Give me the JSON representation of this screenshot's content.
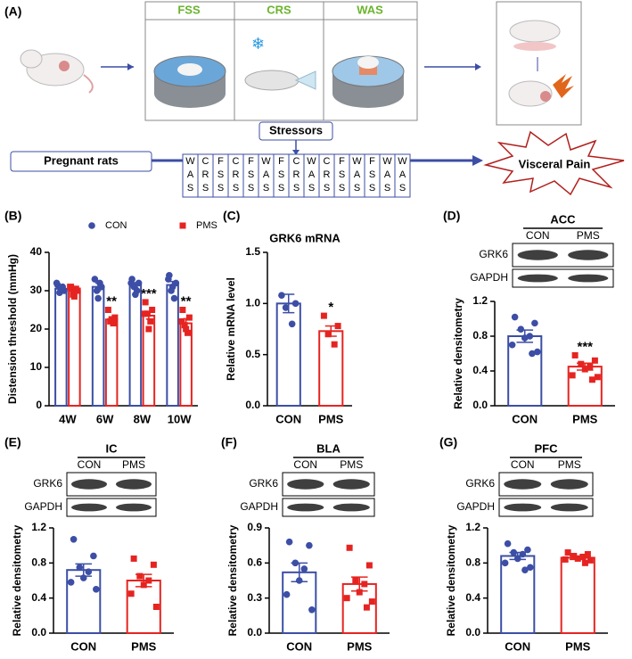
{
  "diagram": {
    "panel": "(A)",
    "stress_types": [
      "FSS",
      "CRS",
      "WAS"
    ],
    "stressors": "Stressors",
    "start": "Pregnant rats",
    "outcome": "Visceral Pain",
    "sequence": [
      [
        "W",
        "A",
        "S"
      ],
      [
        "C",
        "R",
        "S"
      ],
      [
        "F",
        "S",
        "S"
      ],
      [
        "C",
        "R",
        "S"
      ],
      [
        "F",
        "S",
        "S"
      ],
      [
        "W",
        "A",
        "S"
      ],
      [
        "F",
        "S",
        "S"
      ],
      [
        "C",
        "R",
        "S"
      ],
      [
        "W",
        "A",
        "S"
      ],
      [
        "C",
        "R",
        "S"
      ],
      [
        "F",
        "S",
        "S"
      ],
      [
        "W",
        "A",
        "S"
      ],
      [
        "F",
        "S",
        "S"
      ],
      [
        "W",
        "A",
        "S"
      ],
      [
        "W",
        "A",
        "S"
      ]
    ]
  },
  "chart_data": [
    {
      "type": "grouped_bar",
      "panel": "(B)",
      "ylabel": "Distension threshold (mmHg)",
      "categories": [
        "4W",
        "6W",
        "8W",
        "10W"
      ],
      "ylim": [
        0,
        40
      ],
      "yticks": [
        0,
        10,
        20,
        30,
        40
      ],
      "grid": false,
      "legend": "top",
      "series": [
        {
          "name": "CON",
          "color": "#3c4ea5",
          "marker": "circle",
          "values": [
            30.5,
            31,
            31.5,
            31.5
          ],
          "errors": [
            0.5,
            1.0,
            0.6,
            0.9
          ],
          "points": [
            [
              31.5,
              30,
              29.5,
              31,
              30.5,
              32
            ],
            [
              33,
              31,
              30,
              32,
              28
            ],
            [
              33,
              32,
              31,
              30,
              29,
              32
            ],
            [
              34,
              32,
              30,
              28,
              31,
              33
            ]
          ],
          "significance": [
            null,
            null,
            null,
            null
          ]
        },
        {
          "name": "PMS",
          "color": "#e52421",
          "marker": "square",
          "values": [
            30,
            22.5,
            23.5,
            21.5
          ],
          "errors": [
            0.5,
            0.7,
            0.9,
            1.2
          ],
          "points": [
            [
              31,
              30,
              29,
              30.5,
              28.5,
              31
            ],
            [
              25,
              23,
              22,
              21.5,
              22.5
            ],
            [
              27,
              25,
              24,
              22,
              20,
              24
            ],
            [
              25,
              23,
              21,
              19,
              20,
              22
            ]
          ],
          "significance": [
            null,
            "**",
            "***",
            "**"
          ]
        }
      ]
    },
    {
      "type": "bar",
      "panel": "(C)",
      "title": "GRK6 mRNA",
      "ylabel": "Relative mRNA level",
      "categories": [
        "CON",
        "PMS"
      ],
      "colors": [
        "#3c4ea5",
        "#e52421"
      ],
      "markers": [
        "circle",
        "square"
      ],
      "values": [
        1.0,
        0.73
      ],
      "errors": [
        0.09,
        0.05
      ],
      "points": [
        [
          1.08,
          1.0,
          0.96,
          0.8
        ],
        [
          0.88,
          0.78,
          0.7,
          0.6
        ]
      ],
      "significance": [
        null,
        "*"
      ],
      "ylim": [
        0,
        1.5
      ],
      "yticks": [
        {
          "value": 0,
          "label": "0.0"
        },
        0.5,
        {
          "value": 1,
          "label": "1.0"
        },
        1.5
      ],
      "grid": false
    },
    {
      "type": "bar",
      "panel": "(D)",
      "ylabel": "Relative densitometry",
      "categories": [
        "CON",
        "PMS"
      ],
      "blot": {
        "region": "ACC",
        "lanes": [
          "CON",
          "PMS"
        ],
        "proteins": [
          "GRK6",
          "GAPDH"
        ]
      },
      "colors": [
        "#3c4ea5",
        "#e52421"
      ],
      "markers": [
        "circle",
        "square"
      ],
      "values": [
        0.8,
        0.45
      ],
      "errors": [
        0.07,
        0.04
      ],
      "points": [
        [
          1.02,
          0.95,
          0.88,
          0.8,
          0.78,
          0.7,
          0.62,
          0.6
        ],
        [
          0.58,
          0.52,
          0.48,
          0.45,
          0.42,
          0.35,
          0.33,
          0.3
        ]
      ],
      "significance": [
        null,
        "***"
      ],
      "ylim": [
        0,
        1.2
      ],
      "yticks": [
        {
          "value": 0,
          "label": "0.0"
        },
        0.4,
        0.8,
        1.2
      ],
      "grid": false
    },
    {
      "type": "bar",
      "panel": "(E)",
      "ylabel": "Relative densitometry",
      "categories": [
        "CON",
        "PMS"
      ],
      "blot": {
        "region": "IC",
        "lanes": [
          "CON",
          "PMS"
        ],
        "proteins": [
          "GRK6",
          "GAPDH"
        ]
      },
      "colors": [
        "#3c4ea5",
        "#e52421"
      ],
      "markers": [
        "circle",
        "square"
      ],
      "values": [
        0.72,
        0.6
      ],
      "errors": [
        0.07,
        0.07
      ],
      "points": [
        [
          1.07,
          0.88,
          0.75,
          0.7,
          0.63,
          0.58,
          0.5
        ],
        [
          0.85,
          0.78,
          0.65,
          0.6,
          0.55,
          0.45,
          0.3
        ]
      ],
      "significance": [
        null,
        null
      ],
      "ylim": [
        0,
        1.2
      ],
      "yticks": [
        {
          "value": 0,
          "label": "0.0"
        },
        0.4,
        0.8,
        1.2
      ],
      "grid": false
    },
    {
      "type": "bar",
      "panel": "(F)",
      "ylabel": "Relative densitometry",
      "categories": [
        "CON",
        "PMS"
      ],
      "blot": {
        "region": "BLA",
        "lanes": [
          "CON",
          "PMS"
        ],
        "proteins": [
          "GRK6",
          "GAPDH"
        ]
      },
      "colors": [
        "#3c4ea5",
        "#e52421"
      ],
      "markers": [
        "circle",
        "square"
      ],
      "values": [
        0.52,
        0.42
      ],
      "errors": [
        0.08,
        0.06
      ],
      "points": [
        [
          0.78,
          0.75,
          0.6,
          0.55,
          0.45,
          0.33,
          0.2
        ],
        [
          0.73,
          0.58,
          0.45,
          0.42,
          0.35,
          0.3,
          0.27,
          0.22
        ]
      ],
      "significance": [
        null,
        null
      ],
      "ylim": [
        0,
        0.9
      ],
      "yticks": [
        {
          "value": 0,
          "label": "0.0"
        },
        0.3,
        0.6,
        0.9
      ],
      "grid": false
    },
    {
      "type": "bar",
      "panel": "(G)",
      "ylabel": "Relative densitometry",
      "categories": [
        "CON",
        "PMS"
      ],
      "blot": {
        "region": "PFC",
        "lanes": [
          "CON",
          "PMS"
        ],
        "proteins": [
          "GRK6",
          "GAPDH"
        ]
      },
      "colors": [
        "#3c4ea5",
        "#e52421"
      ],
      "markers": [
        "circle",
        "square"
      ],
      "values": [
        0.88,
        0.86
      ],
      "errors": [
        0.04,
        0.02
      ],
      "points": [
        [
          1.02,
          0.95,
          0.92,
          0.9,
          0.85,
          0.8,
          0.75,
          0.72
        ],
        [
          0.92,
          0.9,
          0.88,
          0.87,
          0.85,
          0.84,
          0.83,
          0.8
        ]
      ],
      "significance": [
        null,
        null
      ],
      "ylim": [
        0,
        1.2
      ],
      "yticks": [
        {
          "value": 0,
          "label": "0.0"
        },
        0.4,
        0.8,
        1.2
      ],
      "grid": false
    }
  ]
}
